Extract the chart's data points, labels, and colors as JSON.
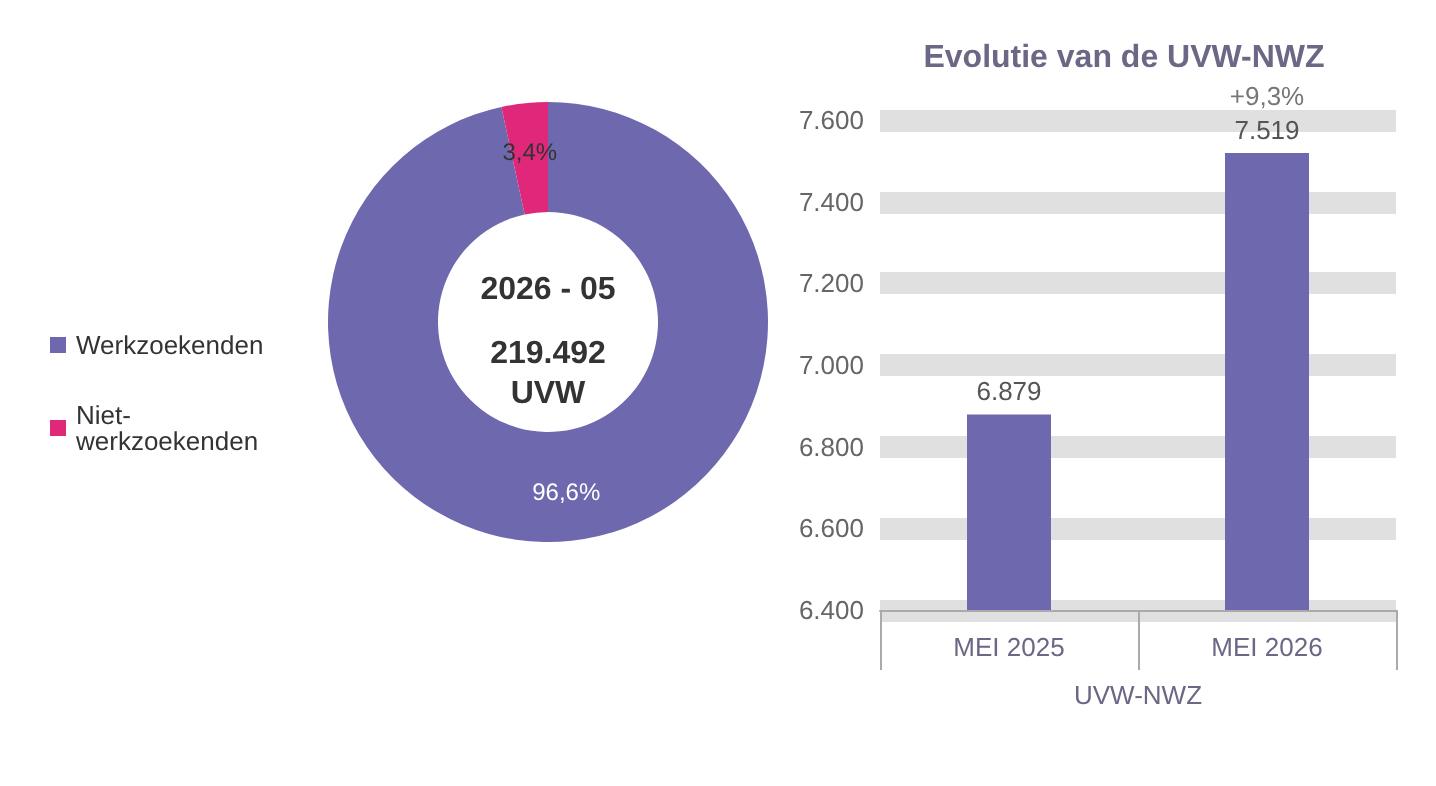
{
  "chart_data": [
    {
      "type": "donut",
      "categories": [
        "Werkzoekenden",
        "Niet-werkzoekenden"
      ],
      "values": [
        96.6,
        3.4
      ],
      "colors": [
        "#6e68ae",
        "#e0287a"
      ],
      "value_labels": [
        "96,6%",
        "3,4%"
      ],
      "annotations": [
        "2026 - 05",
        "219.492\nUVW"
      ],
      "legend": "left"
    },
    {
      "type": "bar",
      "title": "Evolutie van de UVW-NWZ",
      "categories": [
        "MEI 2025",
        "MEI 2026"
      ],
      "values": [
        6879,
        7519
      ],
      "color": "#6e68ae",
      "value_labels": [
        "6.879",
        "7.519"
      ],
      "xlabel": "UVW-NWZ",
      "ylim": [
        6400,
        7600
      ],
      "yticks": [
        {
          "value": 6400,
          "label": "6.400"
        },
        {
          "value": 6600,
          "label": "6.600"
        },
        {
          "value": 6800,
          "label": "6.800"
        },
        {
          "value": 7000,
          "label": "7.000"
        },
        {
          "value": 7200,
          "label": "7.200"
        },
        {
          "value": 7400,
          "label": "7.400"
        },
        {
          "value": 7600,
          "label": "7.600"
        }
      ],
      "grid": "y",
      "annotations": [
        {
          "text": "+9,3%",
          "x": "MEI 2026",
          "y": 7519
        }
      ]
    }
  ]
}
